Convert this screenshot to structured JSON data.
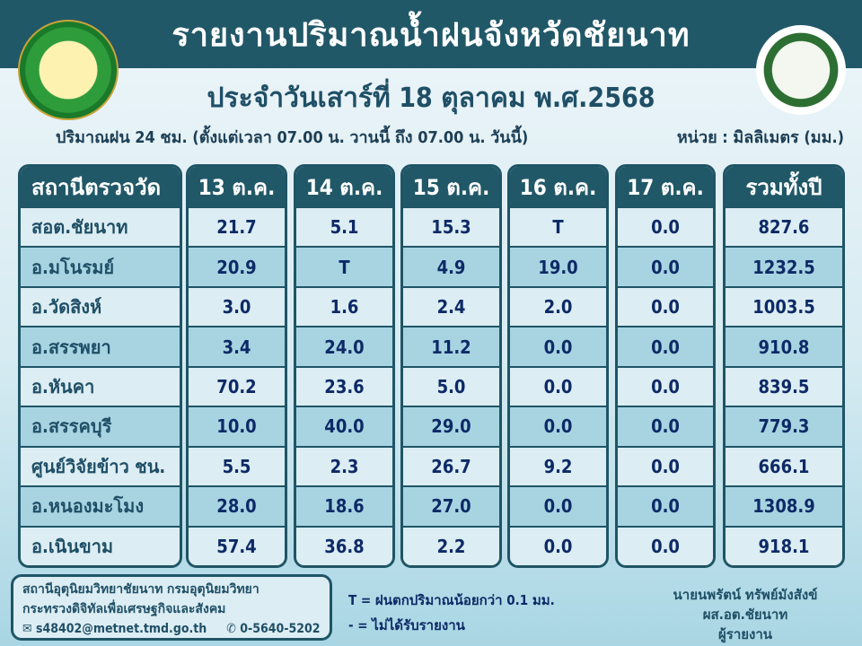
{
  "header": {
    "title": "รายงานปริมาณน้ำฝนจังหวัดชัยนาท",
    "subtitle": "ประจำวันเสาร์ที่ 18 ตุลาคม พ.ศ.2568",
    "period": "ปริมาณฝน 24 ชม. (ตั้งแต่เวลา 07.00 น. วานนี้ ถึง 07.00 น. วันนี้)",
    "unit": "หน่วย : มิลลิเมตร (มม.)",
    "logo_left_text": "กรมอุตุนิยมวิทยา METEOROLOGICAL DEPARTMENT",
    "logo_right_text": "กระทรวงดิจิทัลเพื่อเศรษฐกิจและสังคม Ministry of Digital Economy and Society"
  },
  "table": {
    "columns": [
      "สถานีตรวจวัด",
      "13 ต.ค.",
      "14 ต.ค.",
      "15 ต.ค.",
      "16 ต.ค.",
      "17 ต.ค.",
      "รวมทั้งปี"
    ],
    "rows": [
      [
        "สอต.ชัยนาท",
        "21.7",
        "5.1",
        "15.3",
        "T",
        "0.0",
        "827.6"
      ],
      [
        "อ.มโนรมย์",
        "20.9",
        "T",
        "4.9",
        "19.0",
        "0.0",
        "1232.5"
      ],
      [
        "อ.วัดสิงห์",
        "3.0",
        "1.6",
        "2.4",
        "2.0",
        "0.0",
        "1003.5"
      ],
      [
        "อ.สรรพยา",
        "3.4",
        "24.0",
        "11.2",
        "0.0",
        "0.0",
        "910.8"
      ],
      [
        "อ.หันคา",
        "70.2",
        "23.6",
        "5.0",
        "0.0",
        "0.0",
        "839.5"
      ],
      [
        "อ.สรรคบุรี",
        "10.0",
        "40.0",
        "29.0",
        "0.0",
        "0.0",
        "779.3"
      ],
      [
        "ศูนย์วิจัยข้าว ชน.",
        "5.5",
        "2.3",
        "26.7",
        "9.2",
        "0.0",
        "666.1"
      ],
      [
        "อ.หนองมะโมง",
        "28.0",
        "18.6",
        "27.0",
        "0.0",
        "0.0",
        "1308.9"
      ],
      [
        "อ.เนินขาม",
        "57.4",
        "36.8",
        "2.2",
        "0.0",
        "0.0",
        "918.1"
      ]
    ]
  },
  "footer": {
    "org_line1": "สถานีอุตุนิยมวิทยาชัยนาท  กรมอุตุนิยมวิทยา",
    "org_line2": "กระทรวงดิจิทัลเพื่อเศรษฐกิจและสังคม",
    "email": "s48402@metnet.tmd.go.th",
    "phone": "0-5640-5202",
    "legend_t": "T = ฝนตกปริมาณน้อยกว่า 0.1 มม.",
    "legend_dash": "-  = ไม่ได้รับรายงาน",
    "reporter_name": "นายนพรัตน์ ทรัพย์มังสังข์",
    "reporter_title": "ผส.อต.ชัยนาท",
    "reporter_role": "ผู้รายงาน"
  },
  "colors": {
    "header_band": "#215868",
    "row_light": "#dcedf3",
    "row_dark": "#a8d4e2",
    "value_text": "#0d2a66"
  }
}
